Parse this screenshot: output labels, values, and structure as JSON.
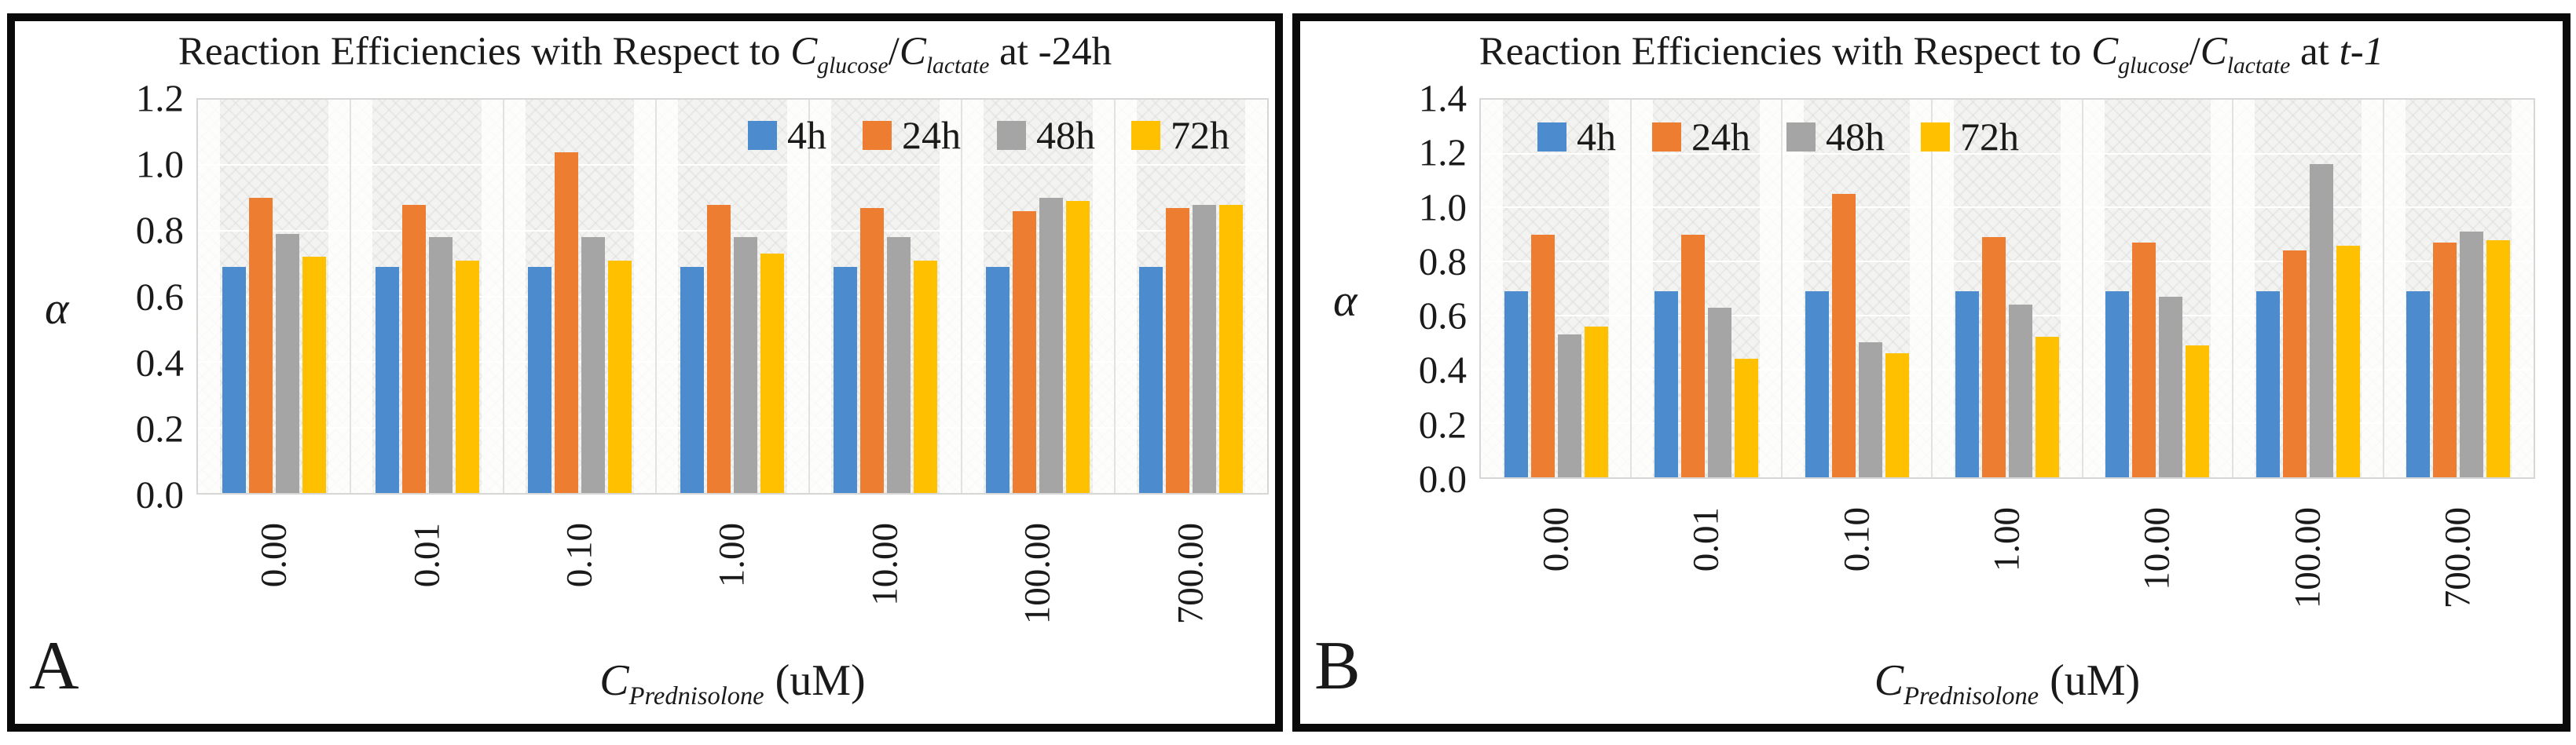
{
  "figure": {
    "panels": [
      {
        "label": "A",
        "title": {
          "prefix": "Reaction Efficiencies with Respect to ",
          "var1_base": "C",
          "var1_sub": "glucose",
          "divider": "/",
          "var2_base": "C",
          "var2_sub": "lactate",
          "at": " at ",
          "time_plain": "-24h",
          "time_italic": ""
        },
        "ylabel": "α",
        "xaxis_title": {
          "base": "C",
          "sub": "Prednisolone",
          "unit": " (uM)"
        }
      },
      {
        "label": "B",
        "title": {
          "prefix": "Reaction Efficiencies with Respect to ",
          "var1_base": "C",
          "var1_sub": "glucose",
          "divider": "/",
          "var2_base": "C",
          "var2_sub": "lactate",
          "at": " at ",
          "time_plain": "",
          "time_italic": "t-1"
        },
        "ylabel": "α",
        "xaxis_title": {
          "base": "C",
          "sub": "Prednisolone",
          "unit": " (uM)"
        }
      }
    ]
  },
  "chart_data": [
    {
      "type": "bar",
      "title": "Reaction Efficiencies with Respect to C_glucose/C_lactate at -24h",
      "xlabel": "C_Prednisolone (uM)",
      "ylabel": "α",
      "categories": [
        "0.00",
        "0.01",
        "0.10",
        "1.00",
        "10.00",
        "100.00",
        "700.00"
      ],
      "series": [
        {
          "name": "4h",
          "color": "#4C8CCE",
          "values": [
            0.69,
            0.69,
            0.69,
            0.69,
            0.69,
            0.69,
            0.69
          ]
        },
        {
          "name": "24h",
          "color": "#ED7D31",
          "values": [
            0.9,
            0.88,
            1.04,
            0.88,
            0.87,
            0.86,
            0.87
          ]
        },
        {
          "name": "48h",
          "color": "#A5A5A5",
          "values": [
            0.79,
            0.78,
            0.78,
            0.78,
            0.78,
            0.9,
            0.88
          ]
        },
        {
          "name": "72h",
          "color": "#FFC000",
          "values": [
            0.72,
            0.71,
            0.71,
            0.73,
            0.71,
            0.89,
            0.88
          ]
        }
      ],
      "ylim": [
        0,
        1.2
      ],
      "ytick_step": 0.2,
      "y_ticks": [
        "1.2",
        "1.0",
        "0.8",
        "0.6",
        "0.4",
        "0.2",
        "0.0"
      ],
      "legend_position": "top-right-inside",
      "grid": true
    },
    {
      "type": "bar",
      "title": "Reaction Efficiencies with Respect to C_glucose/C_lactate at t-1",
      "xlabel": "C_Prednisolone (uM)",
      "ylabel": "α",
      "categories": [
        "0.00",
        "0.01",
        "0.10",
        "1.00",
        "10.00",
        "100.00",
        "700.00"
      ],
      "series": [
        {
          "name": "4h",
          "color": "#4C8CCE",
          "values": [
            0.69,
            0.69,
            0.69,
            0.69,
            0.69,
            0.69,
            0.69
          ]
        },
        {
          "name": "24h",
          "color": "#ED7D31",
          "values": [
            0.9,
            0.9,
            1.05,
            0.89,
            0.87,
            0.84,
            0.87
          ]
        },
        {
          "name": "48h",
          "color": "#A5A5A5",
          "values": [
            0.53,
            0.63,
            0.5,
            0.64,
            0.67,
            1.16,
            0.91
          ]
        },
        {
          "name": "72h",
          "color": "#FFC000",
          "values": [
            0.56,
            0.44,
            0.46,
            0.52,
            0.49,
            0.86,
            0.88
          ]
        }
      ],
      "ylim": [
        0,
        1.4
      ],
      "ytick_step": 0.2,
      "y_ticks": [
        "1.4",
        "1.2",
        "1.0",
        "0.8",
        "0.6",
        "0.4",
        "0.2",
        "0.0"
      ],
      "legend_position": "top-left-inside",
      "grid": true
    }
  ]
}
